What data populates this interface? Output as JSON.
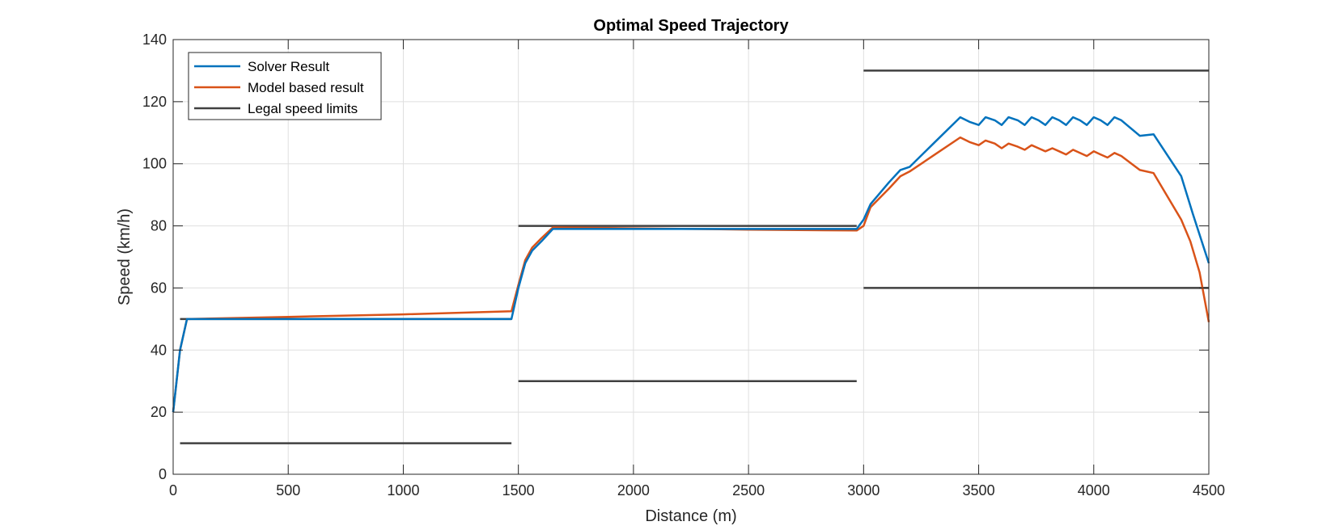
{
  "chart_data": {
    "type": "line",
    "title": "Optimal Speed Trajectory",
    "xlabel": "Distance (m)",
    "ylabel": "Speed (km/h)",
    "xlim": [
      0,
      4500
    ],
    "ylim": [
      0,
      140
    ],
    "xticks": [
      0,
      500,
      1000,
      1500,
      2000,
      2500,
      3000,
      3500,
      4000,
      4500
    ],
    "yticks": [
      0,
      20,
      40,
      60,
      80,
      100,
      120,
      140
    ],
    "grid": true,
    "legend_position": "top-left",
    "series": [
      {
        "name": "Solver Result",
        "color": "#0072BD",
        "points": [
          [
            0,
            20
          ],
          [
            30,
            40
          ],
          [
            60,
            50
          ],
          [
            1470,
            50
          ],
          [
            1500,
            60
          ],
          [
            1530,
            68
          ],
          [
            1560,
            72
          ],
          [
            1600,
            75
          ],
          [
            1650,
            79
          ],
          [
            2970,
            79
          ],
          [
            3000,
            82
          ],
          [
            3030,
            87
          ],
          [
            3110,
            94
          ],
          [
            3160,
            98
          ],
          [
            3200,
            99
          ],
          [
            3310,
            107
          ],
          [
            3420,
            115
          ],
          [
            3460,
            113.5
          ],
          [
            3500,
            112.5
          ],
          [
            3530,
            115
          ],
          [
            3570,
            114
          ],
          [
            3600,
            112.5
          ],
          [
            3630,
            115
          ],
          [
            3670,
            114
          ],
          [
            3700,
            112.5
          ],
          [
            3730,
            115
          ],
          [
            3760,
            114
          ],
          [
            3790,
            112.5
          ],
          [
            3820,
            115
          ],
          [
            3850,
            114
          ],
          [
            3880,
            112.5
          ],
          [
            3910,
            115
          ],
          [
            3940,
            114
          ],
          [
            3970,
            112.5
          ],
          [
            4000,
            115
          ],
          [
            4030,
            114
          ],
          [
            4060,
            112.5
          ],
          [
            4090,
            115
          ],
          [
            4120,
            114
          ],
          [
            4200,
            109
          ],
          [
            4260,
            109.5
          ],
          [
            4380,
            96
          ],
          [
            4430,
            84
          ],
          [
            4500,
            68
          ]
        ]
      },
      {
        "name": "Model based result",
        "color": "#D95319",
        "points": [
          [
            0,
            20
          ],
          [
            30,
            40
          ],
          [
            60,
            50
          ],
          [
            500,
            50.7
          ],
          [
            1000,
            51.5
          ],
          [
            1470,
            52.5
          ],
          [
            1500,
            61
          ],
          [
            1530,
            69
          ],
          [
            1560,
            73
          ],
          [
            1600,
            76
          ],
          [
            1650,
            79.5
          ],
          [
            2000,
            79.2
          ],
          [
            2500,
            78.8
          ],
          [
            2970,
            78.5
          ],
          [
            3000,
            80
          ],
          [
            3030,
            86
          ],
          [
            3110,
            92
          ],
          [
            3160,
            96
          ],
          [
            3200,
            97.5
          ],
          [
            3310,
            103
          ],
          [
            3420,
            108.5
          ],
          [
            3460,
            107
          ],
          [
            3500,
            106
          ],
          [
            3530,
            107.5
          ],
          [
            3570,
            106.5
          ],
          [
            3600,
            105
          ],
          [
            3630,
            106.5
          ],
          [
            3670,
            105.5
          ],
          [
            3700,
            104.5
          ],
          [
            3730,
            106
          ],
          [
            3760,
            105
          ],
          [
            3790,
            104
          ],
          [
            3820,
            105
          ],
          [
            3850,
            104
          ],
          [
            3880,
            103
          ],
          [
            3910,
            104.5
          ],
          [
            3940,
            103.5
          ],
          [
            3970,
            102.5
          ],
          [
            4000,
            104
          ],
          [
            4030,
            103
          ],
          [
            4060,
            102
          ],
          [
            4090,
            103.5
          ],
          [
            4120,
            102.5
          ],
          [
            4200,
            98
          ],
          [
            4260,
            97
          ],
          [
            4380,
            82
          ],
          [
            4420,
            75
          ],
          [
            4460,
            65
          ],
          [
            4500,
            49
          ]
        ]
      },
      {
        "name": "Legal speed limits",
        "color": "#404040",
        "segments": [
          [
            [
              30,
              50
            ],
            [
              1470,
              50
            ]
          ],
          [
            [
              30,
              10
            ],
            [
              1470,
              10
            ]
          ],
          [
            [
              1500,
              80
            ],
            [
              2970,
              80
            ]
          ],
          [
            [
              1500,
              30
            ],
            [
              2970,
              30
            ]
          ],
          [
            [
              3000,
              130
            ],
            [
              4500,
              130
            ]
          ],
          [
            [
              3000,
              60
            ],
            [
              4500,
              60
            ]
          ]
        ]
      }
    ]
  }
}
